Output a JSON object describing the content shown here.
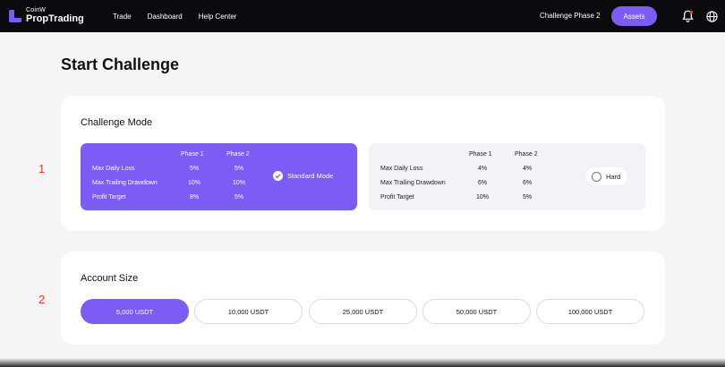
{
  "brand": {
    "small": "CoinW",
    "big": "PropTrading"
  },
  "nav": {
    "items": [
      "Trade",
      "Dashboard",
      "Help Center"
    ]
  },
  "header": {
    "phase": "Challenge Phase 2",
    "assets_label": "Assets"
  },
  "page": {
    "title": "Start Challenge"
  },
  "annotations": [
    "1",
    "2"
  ],
  "challenge_mode": {
    "title": "Challenge Mode",
    "columns": [
      "Phase 1",
      "Phase 2"
    ],
    "modes": [
      {
        "name": "Standard Mode",
        "selected": true,
        "rows": [
          {
            "label": "Max Daily Loss",
            "p1": "5%",
            "p2": "5%"
          },
          {
            "label": "Max Trailing Drawdown",
            "p1": "10%",
            "p2": "10%"
          },
          {
            "label": "Profit Target",
            "p1": "8%",
            "p2": "5%"
          }
        ]
      },
      {
        "name": "Hard",
        "selected": false,
        "rows": [
          {
            "label": "Max Daily Loss",
            "p1": "4%",
            "p2": "4%"
          },
          {
            "label": "Max Trailing Drawdown",
            "p1": "6%",
            "p2": "6%"
          },
          {
            "label": "Profit Target",
            "p1": "10%",
            "p2": "5%"
          }
        ]
      }
    ]
  },
  "account_size": {
    "title": "Account Size",
    "options": [
      "5,000 USDT",
      "10,000 USDT",
      "25,000 USDT",
      "50,000 USDT",
      "100,000 USDT"
    ],
    "selected_index": 0
  },
  "colors": {
    "accent": "#7b5cf5",
    "nav_bg": "#0b0b0e",
    "page_bg": "#f5f5f5",
    "annotation": "#ee3333"
  },
  "icons": {
    "bell": "bell-icon",
    "globe": "globe-icon",
    "check": "check-icon"
  }
}
